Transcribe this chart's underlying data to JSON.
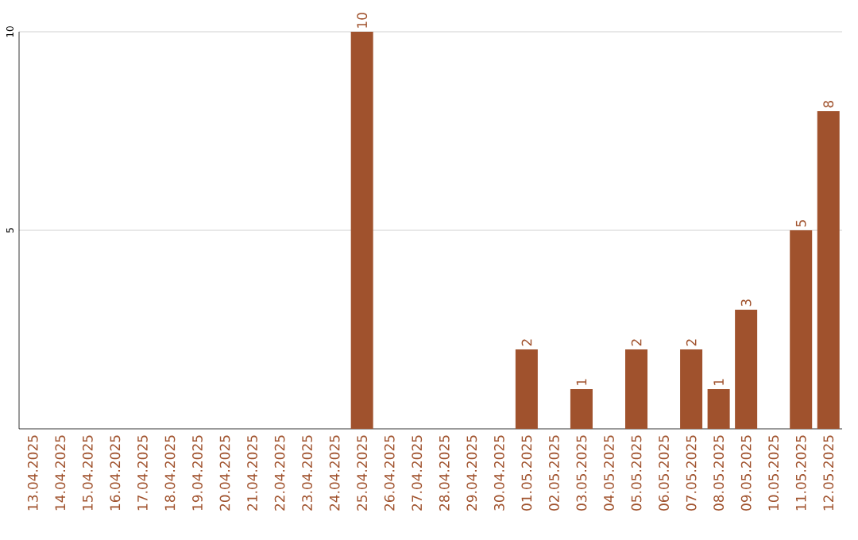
{
  "chart_data": {
    "type": "bar",
    "categories": [
      "13.04.2025",
      "14.04.2025",
      "15.04.2025",
      "16.04.2025",
      "17.04.2025",
      "18.04.2025",
      "19.04.2025",
      "20.04.2025",
      "21.04.2025",
      "22.04.2025",
      "23.04.2025",
      "24.04.2025",
      "25.04.2025",
      "26.04.2025",
      "27.04.2025",
      "28.04.2025",
      "29.04.2025",
      "30.04.2025",
      "01.05.2025",
      "02.05.2025",
      "03.05.2025",
      "04.05.2025",
      "05.05.2025",
      "06.05.2025",
      "07.05.2025",
      "08.05.2025",
      "09.05.2025",
      "10.05.2025",
      "11.05.2025",
      "12.05.2025"
    ],
    "values": [
      0,
      0,
      0,
      0,
      0,
      0,
      0,
      0,
      0,
      0,
      0,
      0,
      10,
      0,
      0,
      0,
      0,
      0,
      2,
      0,
      1,
      0,
      2,
      0,
      2,
      1,
      3,
      0,
      5,
      8
    ],
    "value_labels": [
      null,
      null,
      null,
      null,
      null,
      null,
      null,
      null,
      null,
      null,
      null,
      null,
      "10",
      null,
      null,
      null,
      null,
      null,
      "2",
      null,
      "1",
      null,
      "2",
      null,
      "2",
      "1",
      "3",
      null,
      "5",
      "8"
    ],
    "color": "#a0522d",
    "ylim": [
      0,
      10
    ],
    "yticks": [
      5,
      10
    ],
    "grid": "y"
  }
}
